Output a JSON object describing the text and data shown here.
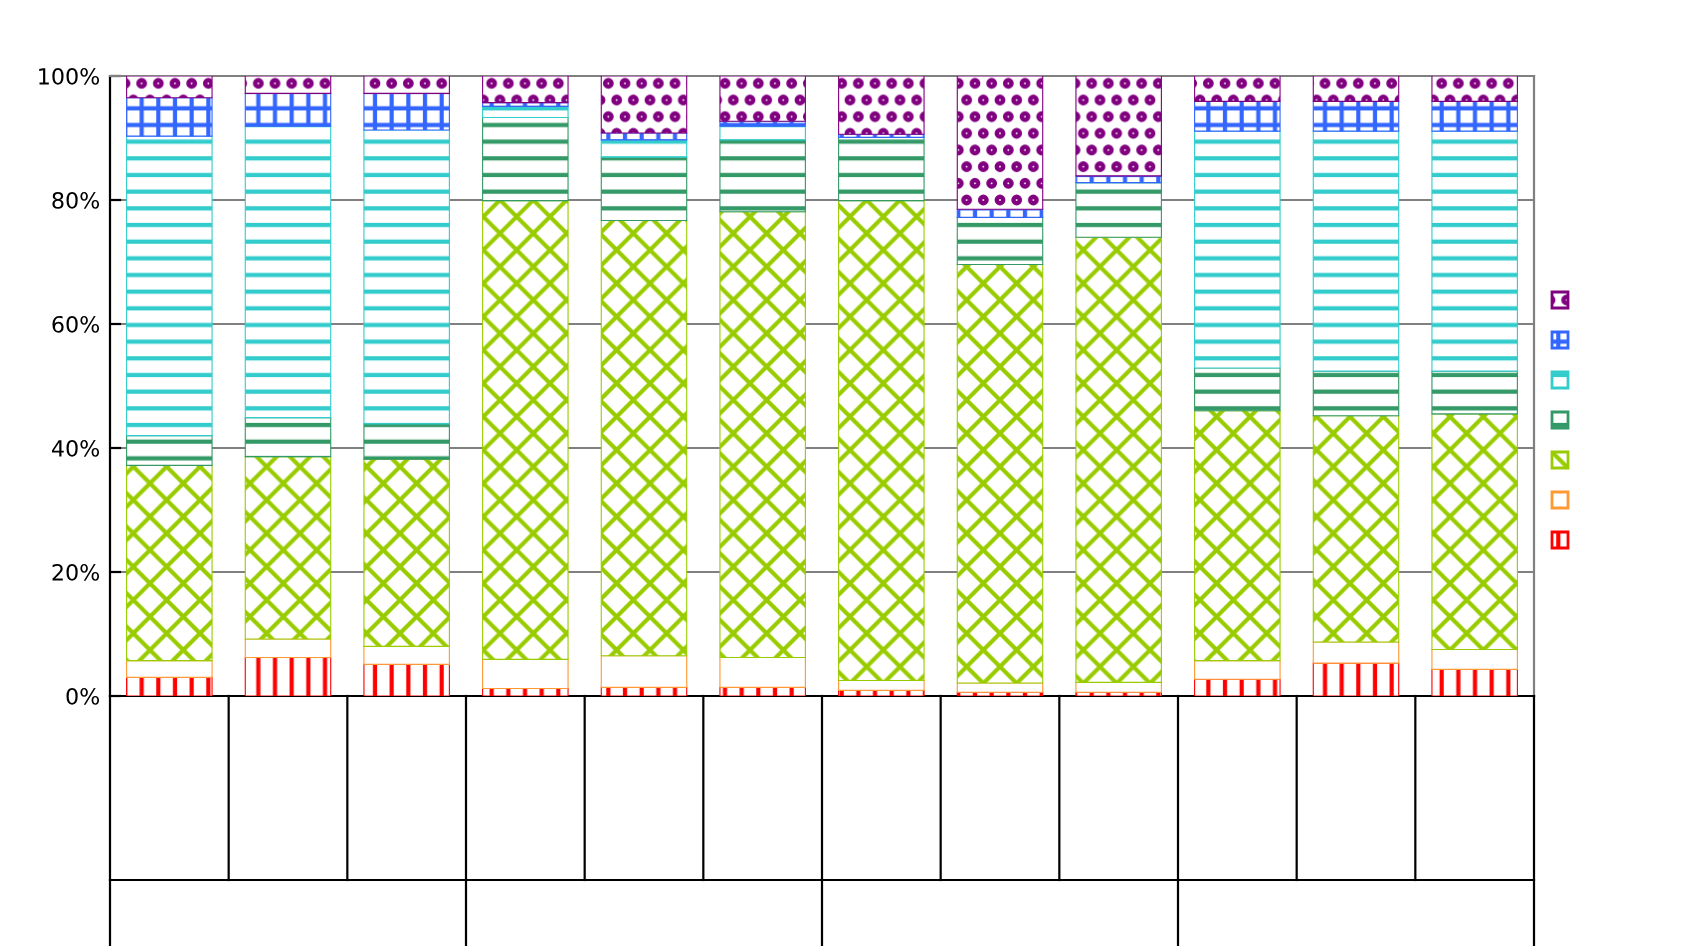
{
  "chart_data": {
    "type": "bar",
    "stacked": true,
    "categories": [
      null,
      null,
      null,
      null,
      null,
      null,
      null,
      null,
      null,
      null,
      null,
      null
    ],
    "series": [
      {
        "color": "#ff0000",
        "values": [
          3.0,
          6.2,
          5.1,
          1.2,
          1.4,
          1.4,
          0.9,
          0.6,
          0.6,
          2.7,
          5.3,
          4.3
        ]
      },
      {
        "color": "#ff9933",
        "values": [
          2.7,
          3.0,
          2.9,
          4.7,
          5.1,
          4.8,
          1.6,
          1.5,
          1.6,
          3.0,
          3.4,
          3.2
        ]
      },
      {
        "color": "#99cc00",
        "values": [
          31.5,
          29.4,
          30.2,
          74.0,
          70.2,
          71.9,
          77.4,
          67.5,
          71.8,
          40.3,
          36.5,
          38.0
        ]
      },
      {
        "color": "#339966",
        "values": [
          4.8,
          6.3,
          5.7,
          13.4,
          10.2,
          11.6,
          10.2,
          7.6,
          8.8,
          6.9,
          7.2,
          6.9
        ]
      },
      {
        "color": "#33cccc",
        "values": [
          48.3,
          47.0,
          47.4,
          1.8,
          2.8,
          2.2,
          0,
          0,
          0,
          38.2,
          38.7,
          38.7
        ]
      },
      {
        "color": "#3366ff",
        "values": [
          6.2,
          5.3,
          5.9,
          0.6,
          1.1,
          0.8,
          0.5,
          1.3,
          1.1,
          4.8,
          4.8,
          4.8
        ]
      },
      {
        "color": "#800080",
        "values": [
          3.5,
          2.8,
          2.8,
          4.3,
          9.2,
          7.3,
          9.4,
          21.5,
          16.1,
          4.1,
          4.1,
          4.1
        ]
      }
    ],
    "ylim": [
      0,
      100
    ],
    "yticks": [
      {
        "value": 0,
        "label": "0%"
      },
      {
        "value": 20,
        "label": "20%"
      },
      {
        "value": 40,
        "label": "40%"
      },
      {
        "value": 60,
        "label": "60%"
      },
      {
        "value": 80,
        "label": "80%"
      },
      {
        "value": 100,
        "label": "100%"
      }
    ],
    "grid": "y"
  }
}
